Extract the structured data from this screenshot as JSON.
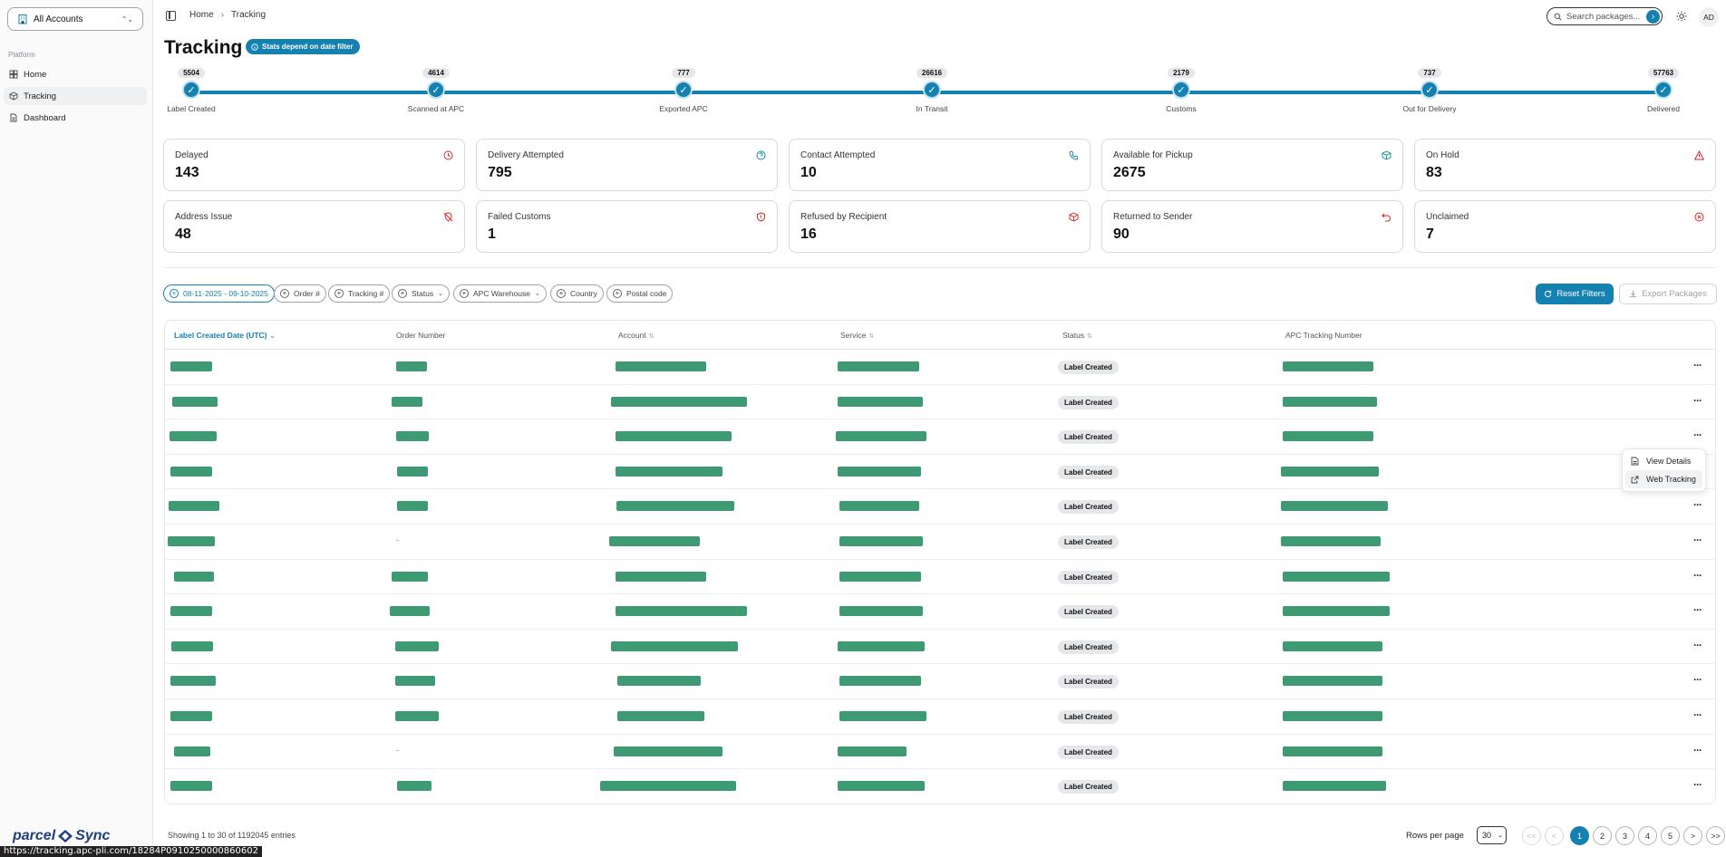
{
  "sidebar": {
    "account_select": "All Accounts",
    "section": "Platform",
    "items": [
      {
        "label": "Home",
        "icon": "home-icon"
      },
      {
        "label": "Tracking",
        "icon": "package-icon"
      },
      {
        "label": "Dashboard",
        "icon": "document-icon"
      }
    ],
    "logo_text": {
      "left": "parcel",
      "right": "Sync"
    }
  },
  "header": {
    "breadcrumb": [
      "Home",
      "Tracking"
    ],
    "search_placeholder": "Search packages...",
    "avatar": "AD"
  },
  "page": {
    "title": "Tracking",
    "badge": "Stats depend on date filter"
  },
  "progress": [
    {
      "count": "5504",
      "label": "Label Created"
    },
    {
      "count": "4614",
      "label": "Scanned at APC"
    },
    {
      "count": "777",
      "label": "Exported APC"
    },
    {
      "count": "26616",
      "label": "In Transit"
    },
    {
      "count": "2179",
      "label": "Customs"
    },
    {
      "count": "737",
      "label": "Out for Delivery"
    },
    {
      "count": "57763",
      "label": "Delivered"
    }
  ],
  "cards": [
    {
      "title": "Delayed",
      "value": "143",
      "icon": "clock-icon",
      "color": "#dc2626"
    },
    {
      "title": "Delivery Attempted",
      "value": "795",
      "icon": "help-circle-icon",
      "color": "#1581b0"
    },
    {
      "title": "Contact Attempted",
      "value": "10",
      "icon": "phone-icon",
      "color": "#1581b0"
    },
    {
      "title": "Available for Pickup",
      "value": "2675",
      "icon": "package-check-icon",
      "color": "#0d9488"
    },
    {
      "title": "On Hold",
      "value": "83",
      "icon": "alert-triangle-icon",
      "color": "#dc2626"
    },
    {
      "title": "Address Issue",
      "value": "48",
      "icon": "map-pin-off-icon",
      "color": "#dc2626"
    },
    {
      "title": "Failed Customs",
      "value": "1",
      "icon": "shield-alert-icon",
      "color": "#dc2626"
    },
    {
      "title": "Refused by Recipient",
      "value": "16",
      "icon": "package-x-icon",
      "color": "#dc2626"
    },
    {
      "title": "Returned to Sender",
      "value": "90",
      "icon": "undo-icon",
      "color": "#dc2626"
    },
    {
      "title": "Unclaimed",
      "value": "7",
      "icon": "x-circle-icon",
      "color": "#dc2626"
    }
  ],
  "filters": {
    "date": "08-11-2025 - 09-10-2025",
    "chips": [
      "Order #",
      "Tracking #",
      "Status",
      "APC Warehouse",
      "Country",
      "Postal code"
    ],
    "reset": "Reset Filters",
    "export": "Export Packages"
  },
  "table": {
    "columns": [
      "Label Created Date (UTC)",
      "Order Number",
      "Account",
      "Service",
      "Status",
      "APC Tracking Number"
    ],
    "rows": [
      {
        "status": "Label Created"
      },
      {
        "status": "Label Created"
      },
      {
        "status": "Label Created"
      },
      {
        "status": "Label Created"
      },
      {
        "status": "Label Created"
      },
      {
        "status": "Label Created"
      },
      {
        "status": "Label Created"
      },
      {
        "status": "Label Created"
      },
      {
        "status": "Label Created"
      },
      {
        "status": "Label Created"
      },
      {
        "status": "Label Created"
      },
      {
        "status": "Label Created"
      },
      {
        "status": "Label Created"
      }
    ],
    "order_dash": "-"
  },
  "context_menu": [
    "View Details",
    "Web Tracking"
  ],
  "footer": {
    "showing": "Showing 1 to 30 of 1192045 entries",
    "rows_per_page_label": "Rows per page",
    "rows_per_page": "30",
    "pages": [
      "<<",
      "<",
      "1",
      "2",
      "3",
      "4",
      "5",
      ">",
      ">>"
    ]
  },
  "status_url": "https://tracking.apc-pli.com/18284P0910250000860602",
  "colors": {
    "accent": "#1581b0",
    "redaction": "#3e9a72",
    "danger": "#dc2626"
  }
}
